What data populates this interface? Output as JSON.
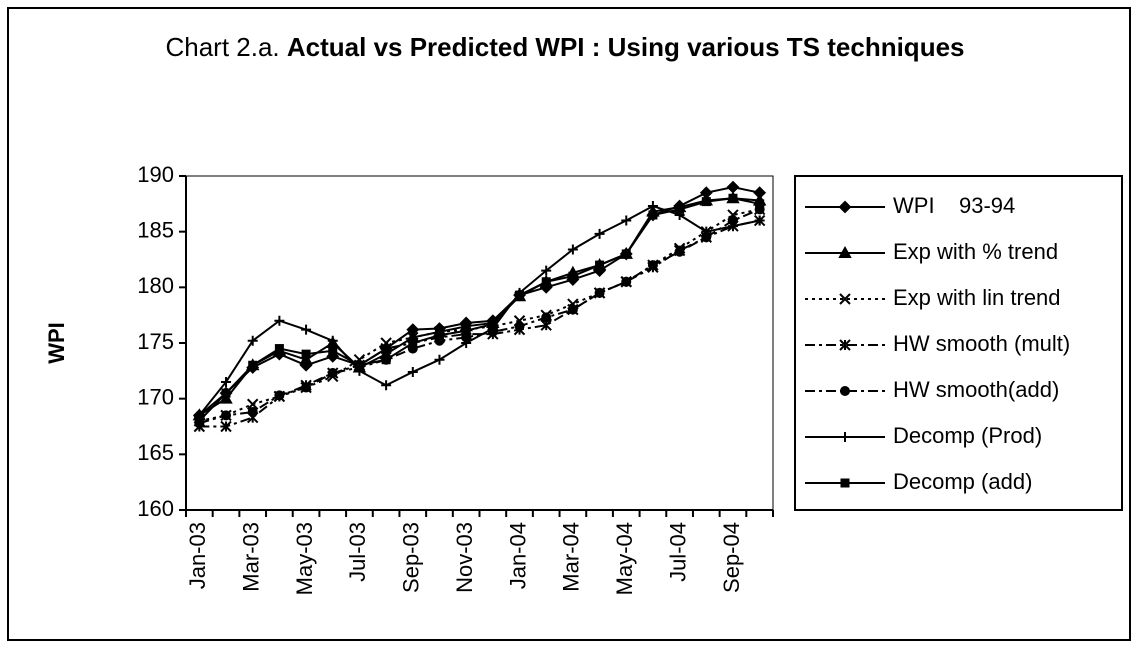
{
  "chart_data": {
    "type": "line",
    "title": [
      "Chart 2.a.",
      "Actual vs Predicted WPI : Using various TS techniques"
    ],
    "y_label": "WPI",
    "categories": [
      "Jan-03",
      null,
      "Mar-03",
      null,
      "May-03",
      null,
      "Jul-03",
      null,
      "Sep-03",
      null,
      "Nov-03",
      null,
      "Jan-04",
      null,
      "Mar-04",
      null,
      "May-04",
      null,
      "Jul-04",
      null,
      "Sep-04",
      null
    ],
    "ylim": [
      160,
      190
    ],
    "yticks": [
      160,
      165,
      170,
      175,
      180,
      185,
      190
    ],
    "legend": "right",
    "series": [
      {
        "name": "WPI    93-94",
        "color": "#000000",
        "marker": "diamond",
        "dash": "solid",
        "values": [
          168.5,
          170.5,
          172.8,
          174,
          173,
          173.8,
          173,
          174.5,
          176.2,
          176.3,
          176.8,
          177,
          179.3,
          180,
          180.7,
          181.5,
          183,
          186.5,
          187.3,
          188.5,
          189,
          188.5
        ]
      },
      {
        "name": "Exp with % trend",
        "color": "#000000",
        "marker": "triangle",
        "dash": "solid",
        "values": [
          168.5,
          170,
          173,
          174.3,
          173.5,
          175,
          172.8,
          174,
          175.5,
          176,
          176.5,
          176.8,
          179.2,
          180.5,
          181.3,
          182,
          183,
          186.8,
          187.2,
          187.8,
          188,
          187.8
        ]
      },
      {
        "name": "Exp with lin trend",
        "color": "#000000",
        "marker": "x",
        "dash": "dotted",
        "values": [
          168,
          168.5,
          169.5,
          170.2,
          171,
          172,
          173.5,
          175,
          175.5,
          176,
          176.2,
          176.5,
          177,
          177.5,
          178.5,
          179.5,
          180.5,
          182,
          183.5,
          185,
          186.5,
          187
        ]
      },
      {
        "name": "HW smooth (mult)",
        "color": "#000000",
        "marker": "asterisk",
        "dash": "dashdot",
        "values": [
          167.5,
          167.5,
          168.3,
          170.2,
          171.2,
          172.3,
          173,
          174.5,
          175,
          175.5,
          175.8,
          175.8,
          176.2,
          176.6,
          178,
          179.5,
          180.5,
          181.8,
          183.3,
          184.5,
          185.5,
          186
        ]
      },
      {
        "name": "HW smooth(add)",
        "color": "#000000",
        "marker": "circle",
        "dash": "dashdot",
        "values": [
          167.8,
          168.5,
          168.8,
          170.3,
          171,
          172.3,
          172.8,
          173.5,
          174.5,
          175.2,
          175.5,
          176,
          176.5,
          177.3,
          178,
          179.5,
          180.5,
          182,
          183.2,
          184.5,
          186,
          187
        ]
      },
      {
        "name": "Decomp (Prod)",
        "color": "#000000",
        "marker": "plus",
        "dash": "solid",
        "values": [
          168.5,
          171.5,
          175.2,
          177,
          176.2,
          175.2,
          172.5,
          171.2,
          172.4,
          173.5,
          175,
          176.3,
          179.5,
          181.5,
          183.4,
          184.8,
          186,
          187.3,
          186.5,
          185,
          185.5,
          186
        ]
      },
      {
        "name": "Decomp (add)",
        "color": "#000000",
        "marker": "square",
        "dash": "solid",
        "values": [
          168,
          170.5,
          173,
          174.5,
          174,
          174.3,
          173,
          173.5,
          175,
          175.7,
          176.1,
          176.7,
          179.3,
          180.5,
          181,
          182,
          183,
          186.5,
          187,
          187.7,
          188,
          187.5
        ]
      }
    ]
  }
}
